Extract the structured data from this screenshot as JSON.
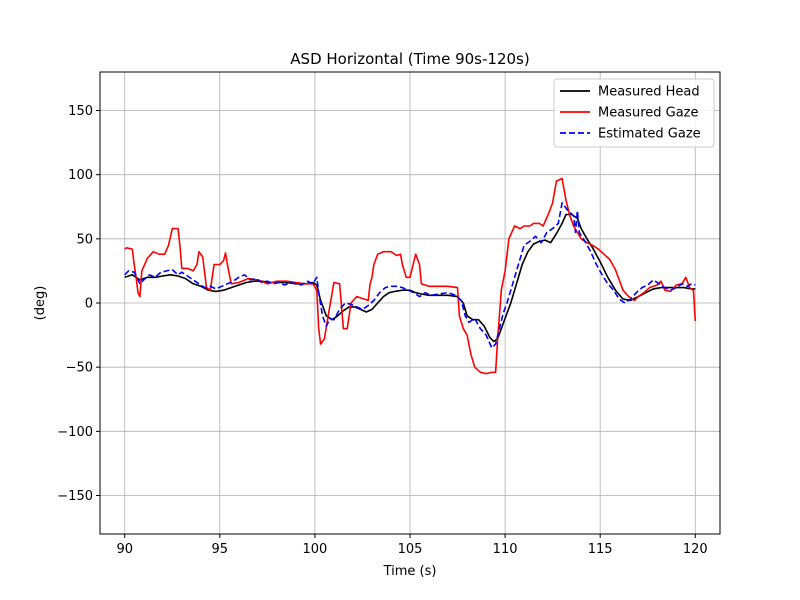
{
  "chart_data": {
    "type": "line",
    "title": "ASD Horizontal (Time 90s-120s)",
    "xlabel": "Time (s)",
    "ylabel": "(deg)",
    "xlim": [
      88.7,
      121.3
    ],
    "ylim": [
      -180,
      180
    ],
    "xticks": [
      90,
      95,
      100,
      105,
      110,
      115,
      120
    ],
    "yticks": [
      -150,
      -100,
      -50,
      0,
      50,
      100,
      150
    ],
    "grid": true,
    "legend_position": "top-right",
    "series": [
      {
        "name": "Measured Head",
        "color": "#000000",
        "dash": "solid",
        "points": [
          [
            90,
            20
          ],
          [
            90.4,
            22
          ],
          [
            90.8,
            18
          ],
          [
            91.2,
            20
          ],
          [
            91.6,
            20
          ],
          [
            92.0,
            21
          ],
          [
            92.4,
            22
          ],
          [
            92.8,
            21
          ],
          [
            93.2,
            19
          ],
          [
            93.6,
            15
          ],
          [
            94.0,
            13
          ],
          [
            94.4,
            10
          ],
          [
            94.8,
            9
          ],
          [
            95.2,
            10
          ],
          [
            95.6,
            12
          ],
          [
            96.0,
            14
          ],
          [
            96.4,
            16
          ],
          [
            96.8,
            17
          ],
          [
            97.2,
            17
          ],
          [
            97.6,
            16
          ],
          [
            98.0,
            16
          ],
          [
            98.5,
            16
          ],
          [
            99.0,
            15
          ],
          [
            99.5,
            15
          ],
          [
            99.9,
            16
          ],
          [
            100.1,
            14
          ],
          [
            100.3,
            2
          ],
          [
            100.6,
            -10
          ],
          [
            100.9,
            -13
          ],
          [
            101.2,
            -10
          ],
          [
            101.5,
            -6
          ],
          [
            101.8,
            -3
          ],
          [
            102.1,
            -3
          ],
          [
            102.4,
            -5
          ],
          [
            102.7,
            -7
          ],
          [
            103.0,
            -5
          ],
          [
            103.3,
            0
          ],
          [
            103.6,
            5
          ],
          [
            103.9,
            8
          ],
          [
            104.2,
            9
          ],
          [
            104.6,
            10
          ],
          [
            105.0,
            10
          ],
          [
            105.3,
            8
          ],
          [
            105.6,
            7
          ],
          [
            106.0,
            6
          ],
          [
            106.5,
            6
          ],
          [
            107.0,
            6
          ],
          [
            107.5,
            5
          ],
          [
            107.8,
            0
          ],
          [
            108.0,
            -10
          ],
          [
            108.3,
            -13
          ],
          [
            108.6,
            -13
          ],
          [
            108.9,
            -18
          ],
          [
            109.2,
            -27
          ],
          [
            109.4,
            -30
          ],
          [
            109.6,
            -28
          ],
          [
            109.8,
            -20
          ],
          [
            110.0,
            -12
          ],
          [
            110.3,
            0
          ],
          [
            110.6,
            15
          ],
          [
            110.9,
            30
          ],
          [
            111.2,
            40
          ],
          [
            111.5,
            46
          ],
          [
            111.8,
            48
          ],
          [
            112.1,
            49
          ],
          [
            112.4,
            47
          ],
          [
            112.7,
            54
          ],
          [
            113.0,
            62
          ],
          [
            113.2,
            69
          ],
          [
            113.5,
            69
          ],
          [
            113.8,
            66
          ],
          [
            114.0,
            58
          ],
          [
            114.3,
            50
          ],
          [
            114.6,
            43
          ],
          [
            115.0,
            32
          ],
          [
            115.4,
            20
          ],
          [
            115.8,
            10
          ],
          [
            116.2,
            3
          ],
          [
            116.6,
            2
          ],
          [
            117.0,
            5
          ],
          [
            117.4,
            8
          ],
          [
            117.8,
            11
          ],
          [
            118.2,
            12
          ],
          [
            118.6,
            12
          ],
          [
            119.0,
            12
          ],
          [
            119.4,
            12
          ],
          [
            119.8,
            11
          ],
          [
            120.0,
            11
          ]
        ]
      },
      {
        "name": "Measured Gaze",
        "color": "#ff0000",
        "dash": "solid",
        "points": [
          [
            90,
            42
          ],
          [
            90.1,
            43
          ],
          [
            90.4,
            42
          ],
          [
            90.5,
            30
          ],
          [
            90.6,
            20
          ],
          [
            90.7,
            8
          ],
          [
            90.8,
            5
          ],
          [
            90.9,
            25
          ],
          [
            91.2,
            35
          ],
          [
            91.5,
            40
          ],
          [
            91.8,
            38
          ],
          [
            92.1,
            38
          ],
          [
            92.3,
            45
          ],
          [
            92.5,
            58
          ],
          [
            92.8,
            58
          ],
          [
            92.9,
            45
          ],
          [
            93.0,
            27
          ],
          [
            93.3,
            27
          ],
          [
            93.6,
            25
          ],
          [
            93.8,
            30
          ],
          [
            93.9,
            40
          ],
          [
            94.1,
            36
          ],
          [
            94.3,
            12
          ],
          [
            94.5,
            10
          ],
          [
            94.7,
            30
          ],
          [
            95.0,
            30
          ],
          [
            95.2,
            33
          ],
          [
            95.3,
            39
          ],
          [
            95.4,
            30
          ],
          [
            95.6,
            15
          ],
          [
            96.0,
            16
          ],
          [
            96.5,
            19
          ],
          [
            97.0,
            18
          ],
          [
            97.5,
            15
          ],
          [
            98.0,
            17
          ],
          [
            98.5,
            17
          ],
          [
            99.0,
            16
          ],
          [
            99.5,
            15
          ],
          [
            99.9,
            15
          ],
          [
            100.1,
            10
          ],
          [
            100.2,
            -20
          ],
          [
            100.3,
            -32
          ],
          [
            100.5,
            -28
          ],
          [
            100.7,
            -10
          ],
          [
            101.0,
            16
          ],
          [
            101.3,
            15
          ],
          [
            101.5,
            -20
          ],
          [
            101.7,
            -20
          ],
          [
            101.9,
            0
          ],
          [
            102.2,
            5
          ],
          [
            102.6,
            3
          ],
          [
            102.8,
            2
          ],
          [
            102.9,
            15
          ],
          [
            103.0,
            20
          ],
          [
            103.1,
            30
          ],
          [
            103.3,
            38
          ],
          [
            103.6,
            40
          ],
          [
            104.0,
            40
          ],
          [
            104.3,
            37
          ],
          [
            104.5,
            38
          ],
          [
            104.6,
            30
          ],
          [
            104.8,
            20
          ],
          [
            105.0,
            20
          ],
          [
            105.3,
            38
          ],
          [
            105.5,
            30
          ],
          [
            105.6,
            15
          ],
          [
            106.0,
            13
          ],
          [
            106.5,
            13
          ],
          [
            107.0,
            13
          ],
          [
            107.5,
            12
          ],
          [
            107.6,
            -10
          ],
          [
            107.8,
            -20
          ],
          [
            108.0,
            -25
          ],
          [
            108.2,
            -40
          ],
          [
            108.4,
            -50
          ],
          [
            108.7,
            -54
          ],
          [
            109.0,
            -55
          ],
          [
            109.3,
            -54
          ],
          [
            109.5,
            -54
          ],
          [
            109.6,
            -30
          ],
          [
            109.8,
            10
          ],
          [
            110.0,
            25
          ],
          [
            110.2,
            50
          ],
          [
            110.5,
            60
          ],
          [
            110.8,
            58
          ],
          [
            111.0,
            60
          ],
          [
            111.3,
            60
          ],
          [
            111.5,
            62
          ],
          [
            111.8,
            62
          ],
          [
            112.0,
            60
          ],
          [
            112.3,
            70
          ],
          [
            112.5,
            78
          ],
          [
            112.7,
            95
          ],
          [
            113.0,
            97
          ],
          [
            113.2,
            80
          ],
          [
            113.4,
            68
          ],
          [
            113.6,
            60
          ],
          [
            113.8,
            55
          ],
          [
            114.0,
            50
          ],
          [
            114.3,
            47
          ],
          [
            114.6,
            45
          ],
          [
            114.9,
            42
          ],
          [
            115.2,
            38
          ],
          [
            115.5,
            34
          ],
          [
            115.8,
            26
          ],
          [
            116.0,
            18
          ],
          [
            116.2,
            10
          ],
          [
            116.5,
            5
          ],
          [
            116.8,
            2
          ],
          [
            117.0,
            5
          ],
          [
            117.3,
            8
          ],
          [
            117.6,
            12
          ],
          [
            118.0,
            14
          ],
          [
            118.2,
            17
          ],
          [
            118.4,
            10
          ],
          [
            118.7,
            9
          ],
          [
            119.0,
            14
          ],
          [
            119.3,
            15
          ],
          [
            119.5,
            20
          ],
          [
            119.7,
            12
          ],
          [
            119.9,
            10
          ],
          [
            120.0,
            -14
          ]
        ]
      },
      {
        "name": "Estimated Gaze",
        "color": "#0000ff",
        "dash": "dashed",
        "points": [
          [
            90,
            22
          ],
          [
            90.2,
            25
          ],
          [
            90.5,
            24
          ],
          [
            90.8,
            15
          ],
          [
            91.0,
            18
          ],
          [
            91.3,
            22
          ],
          [
            91.6,
            20
          ],
          [
            91.9,
            24
          ],
          [
            92.2,
            25
          ],
          [
            92.5,
            26
          ],
          [
            92.8,
            22
          ],
          [
            93.0,
            24
          ],
          [
            93.3,
            21
          ],
          [
            93.6,
            18
          ],
          [
            93.9,
            15
          ],
          [
            94.2,
            12
          ],
          [
            94.5,
            13
          ],
          [
            94.8,
            11
          ],
          [
            95.1,
            13
          ],
          [
            95.4,
            15
          ],
          [
            95.7,
            17
          ],
          [
            96.0,
            20
          ],
          [
            96.3,
            22
          ],
          [
            96.6,
            18
          ],
          [
            96.9,
            19
          ],
          [
            97.2,
            16
          ],
          [
            97.5,
            17
          ],
          [
            97.8,
            15
          ],
          [
            98.1,
            16
          ],
          [
            98.4,
            14
          ],
          [
            98.7,
            16
          ],
          [
            99.0,
            15
          ],
          [
            99.3,
            14
          ],
          [
            99.6,
            17
          ],
          [
            99.9,
            15
          ],
          [
            100.1,
            20
          ],
          [
            100.2,
            8
          ],
          [
            100.4,
            -10
          ],
          [
            100.6,
            -18
          ],
          [
            100.8,
            -12
          ],
          [
            101.0,
            -13
          ],
          [
            101.3,
            -5
          ],
          [
            101.6,
            0
          ],
          [
            101.9,
            -1
          ],
          [
            102.2,
            -3
          ],
          [
            102.5,
            -5
          ],
          [
            102.8,
            -2
          ],
          [
            103.1,
            2
          ],
          [
            103.4,
            8
          ],
          [
            103.7,
            12
          ],
          [
            104.0,
            13
          ],
          [
            104.3,
            13
          ],
          [
            104.6,
            12
          ],
          [
            104.9,
            10
          ],
          [
            105.2,
            8
          ],
          [
            105.5,
            5
          ],
          [
            105.8,
            8
          ],
          [
            106.1,
            6
          ],
          [
            106.5,
            7
          ],
          [
            107.0,
            8
          ],
          [
            107.4,
            6
          ],
          [
            107.7,
            2
          ],
          [
            107.9,
            -10
          ],
          [
            108.1,
            -15
          ],
          [
            108.4,
            -12
          ],
          [
            108.7,
            -20
          ],
          [
            109.0,
            -25
          ],
          [
            109.3,
            -35
          ],
          [
            109.5,
            -32
          ],
          [
            109.7,
            -20
          ],
          [
            109.9,
            -8
          ],
          [
            110.1,
            0
          ],
          [
            110.4,
            15
          ],
          [
            110.7,
            30
          ],
          [
            111.0,
            45
          ],
          [
            111.3,
            48
          ],
          [
            111.6,
            52
          ],
          [
            111.9,
            47
          ],
          [
            112.2,
            55
          ],
          [
            112.5,
            58
          ],
          [
            112.8,
            62
          ],
          [
            113.0,
            78
          ],
          [
            113.3,
            72
          ],
          [
            113.6,
            68
          ],
          [
            113.7,
            55
          ],
          [
            113.8,
            72
          ],
          [
            113.9,
            55
          ],
          [
            114.2,
            48
          ],
          [
            114.5,
            40
          ],
          [
            114.8,
            30
          ],
          [
            115.1,
            22
          ],
          [
            115.4,
            15
          ],
          [
            115.7,
            10
          ],
          [
            116.0,
            3
          ],
          [
            116.3,
            0
          ],
          [
            116.6,
            3
          ],
          [
            116.9,
            8
          ],
          [
            117.2,
            12
          ],
          [
            117.5,
            14
          ],
          [
            117.8,
            18
          ],
          [
            118.1,
            15
          ],
          [
            118.4,
            12
          ],
          [
            118.7,
            10
          ],
          [
            119.0,
            12
          ],
          [
            119.3,
            15
          ],
          [
            119.6,
            13
          ],
          [
            119.8,
            15
          ],
          [
            120.0,
            14
          ]
        ]
      }
    ]
  }
}
